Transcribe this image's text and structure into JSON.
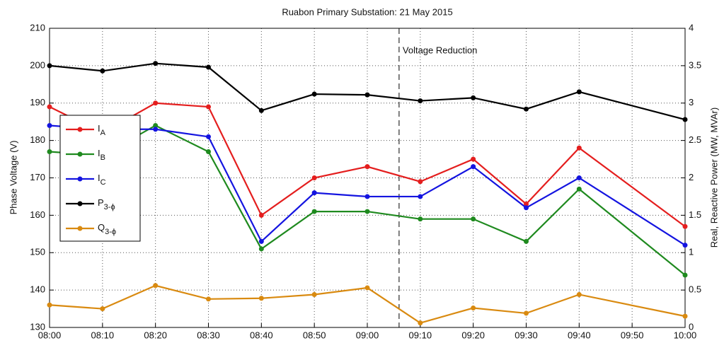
{
  "chart_data": {
    "type": "line",
    "title": "Ruabon Primary Substation: 21 May 2015",
    "ylabel": "Phase Voltage (V)",
    "y2label": "Real, Reactive Power (MW, MVAr)",
    "x": [
      "08:00",
      "08:10",
      "08:20",
      "08:30",
      "08:40",
      "08:50",
      "09:00",
      "09:10",
      "09:20",
      "09:30",
      "09:40",
      "10:00"
    ],
    "xlim": [
      "08:00",
      "10:00"
    ],
    "xticks": [
      "08:00",
      "08:10",
      "08:20",
      "08:30",
      "08:40",
      "08:50",
      "09:00",
      "09:10",
      "09:20",
      "09:30",
      "09:40",
      "09:50",
      "10:00"
    ],
    "ylim": [
      130,
      210
    ],
    "yticks": [
      130,
      140,
      150,
      160,
      170,
      180,
      190,
      200,
      210
    ],
    "y2lim": [
      0,
      4
    ],
    "y2ticks": [
      0,
      0.5,
      1,
      1.5,
      2,
      2.5,
      3,
      3.5,
      4
    ],
    "grid": true,
    "legend": "left",
    "annotation": {
      "text": "Voltage Reduction",
      "x": "09:06"
    },
    "series": [
      {
        "name": "IA",
        "color": "#e41e1e",
        "values": [
          189,
          182,
          190,
          189,
          160,
          170,
          173,
          169,
          175,
          163,
          178,
          157
        ]
      },
      {
        "name": "IB",
        "color": "#1f8a1f",
        "values": [
          177,
          176,
          184,
          177,
          151,
          161,
          161,
          159,
          159,
          153,
          167,
          144
        ]
      },
      {
        "name": "IC",
        "color": "#1414e0",
        "values": [
          184,
          183,
          183,
          181,
          153,
          166,
          165,
          165,
          173,
          162,
          170,
          152
        ]
      },
      {
        "name": "P3-ϕ",
        "color": "#000000",
        "axis": "y2",
        "values": [
          3.5,
          3.43,
          3.53,
          3.48,
          2.9,
          3.12,
          3.11,
          3.03,
          3.07,
          2.92,
          3.15,
          2.78
        ]
      },
      {
        "name": "Q3-ϕ",
        "color": "#d98a10",
        "axis": "y2",
        "values": [
          0.3,
          0.25,
          0.56,
          0.38,
          0.39,
          0.44,
          0.53,
          0.06,
          0.26,
          0.19,
          0.44,
          0.15
        ]
      }
    ]
  }
}
